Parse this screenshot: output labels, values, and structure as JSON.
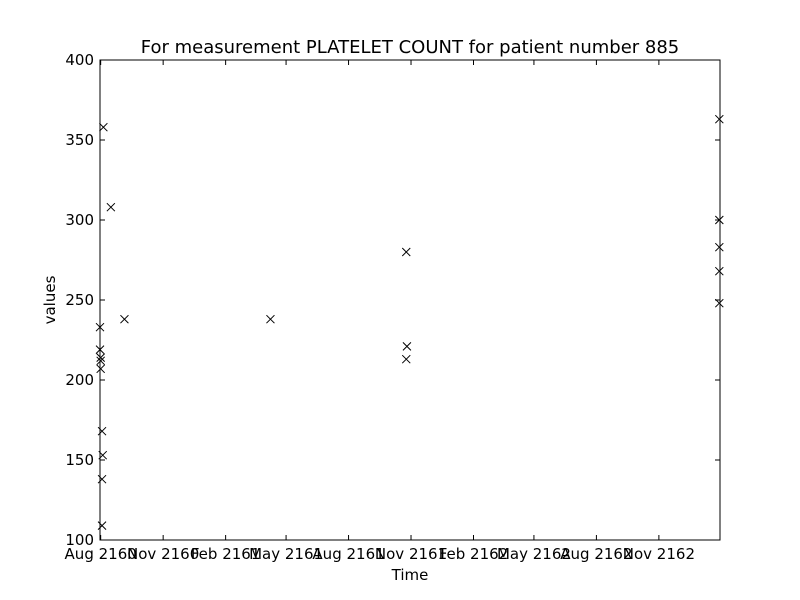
{
  "chart_data": {
    "type": "scatter",
    "title": "For measurement PLATELET COUNT for patient number 885",
    "xlabel": "Time",
    "ylabel": "values",
    "marker": "x",
    "marker_color": "#000000",
    "grid": false,
    "legend": "none",
    "xlim": [
      "2160-07-31",
      "2163-01-30"
    ],
    "ylim": [
      100,
      400
    ],
    "xticks": [
      {
        "value": "2160-08-01",
        "label": "Aug 2160"
      },
      {
        "value": "2160-11-01",
        "label": "Nov 2160"
      },
      {
        "value": "2161-02-01",
        "label": "Feb 2161"
      },
      {
        "value": "2161-05-01",
        "label": "May 2161"
      },
      {
        "value": "2161-08-01",
        "label": "Aug 2161"
      },
      {
        "value": "2161-11-01",
        "label": "Nov 2161"
      },
      {
        "value": "2162-02-01",
        "label": "Feb 2162"
      },
      {
        "value": "2162-05-01",
        "label": "May 2162"
      },
      {
        "value": "2162-08-01",
        "label": "Aug 2162"
      },
      {
        "value": "2162-11-01",
        "label": "Nov 2162"
      }
    ],
    "yticks": [
      100,
      150,
      200,
      250,
      300,
      350,
      400
    ],
    "points": [
      {
        "x": "2160-07-31",
        "y": 233
      },
      {
        "x": "2160-07-31",
        "y": 219
      },
      {
        "x": "2160-08-01",
        "y": 214
      },
      {
        "x": "2160-08-01",
        "y": 212
      },
      {
        "x": "2160-08-01",
        "y": 207
      },
      {
        "x": "2160-08-03",
        "y": 168
      },
      {
        "x": "2160-08-04",
        "y": 153
      },
      {
        "x": "2160-08-03",
        "y": 138
      },
      {
        "x": "2160-08-03",
        "y": 109
      },
      {
        "x": "2160-08-05",
        "y": 358
      },
      {
        "x": "2160-08-16",
        "y": 308
      },
      {
        "x": "2160-09-05",
        "y": 238
      },
      {
        "x": "2161-04-08",
        "y": 238
      },
      {
        "x": "2161-10-25",
        "y": 280
      },
      {
        "x": "2161-10-26",
        "y": 221
      },
      {
        "x": "2161-10-25",
        "y": 213
      },
      {
        "x": "2163-01-29",
        "y": 363
      },
      {
        "x": "2163-01-29",
        "y": 300
      },
      {
        "x": "2163-01-29",
        "y": 283
      },
      {
        "x": "2163-01-29",
        "y": 268
      },
      {
        "x": "2163-01-29",
        "y": 248
      }
    ]
  }
}
